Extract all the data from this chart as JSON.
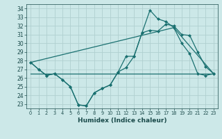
{
  "title": "",
  "xlabel": "Humidex (Indice chaleur)",
  "background_color": "#cce8e8",
  "grid_color": "#b0d0d0",
  "line_color": "#1a7070",
  "x_ticks": [
    0,
    1,
    2,
    3,
    4,
    5,
    6,
    7,
    8,
    9,
    10,
    11,
    12,
    13,
    14,
    15,
    16,
    17,
    18,
    19,
    20,
    21,
    22,
    23
  ],
  "ylim": [
    22.5,
    34.5
  ],
  "xlim": [
    -0.5,
    23.5
  ],
  "yticks": [
    23,
    24,
    25,
    26,
    27,
    28,
    29,
    30,
    31,
    32,
    33,
    34
  ],
  "line1_x": [
    0,
    1,
    2,
    3,
    4,
    5,
    6,
    7,
    8,
    9,
    10,
    11,
    12,
    13,
    14,
    15,
    16,
    17,
    18,
    19,
    20,
    21,
    22,
    23
  ],
  "line1_y": [
    27.8,
    27.0,
    26.3,
    26.5,
    25.8,
    25.0,
    22.9,
    22.8,
    24.3,
    24.8,
    25.2,
    26.7,
    27.2,
    28.5,
    31.2,
    33.8,
    32.8,
    32.5,
    31.8,
    30.0,
    28.8,
    26.5,
    26.3,
    26.5
  ],
  "line2_x": [
    0,
    1,
    2,
    3,
    4,
    5,
    6,
    7,
    8,
    9,
    10,
    11,
    12,
    13,
    14,
    15,
    16,
    17,
    18,
    19,
    20,
    21,
    22,
    23
  ],
  "line2_y": [
    27.8,
    27.0,
    26.3,
    26.5,
    25.8,
    25.0,
    22.9,
    22.8,
    24.3,
    24.8,
    25.2,
    26.7,
    28.5,
    28.5,
    31.2,
    31.5,
    31.4,
    32.2,
    32.0,
    31.0,
    30.9,
    29.0,
    27.3,
    26.5
  ],
  "line3_x": [
    0,
    23
  ],
  "line3_y": [
    26.5,
    26.5
  ],
  "line4_x": [
    0,
    18,
    23
  ],
  "line4_y": [
    27.8,
    31.8,
    26.5
  ]
}
